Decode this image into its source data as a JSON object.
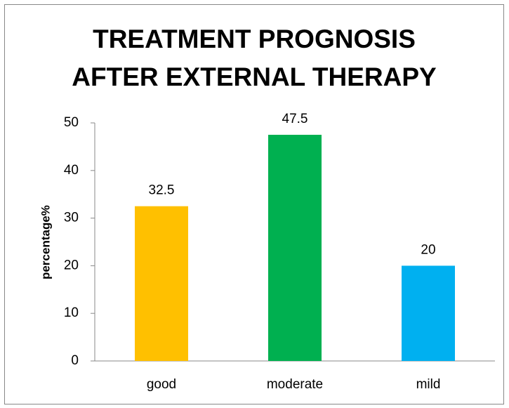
{
  "chart_data": {
    "type": "bar",
    "title": [
      "TREATMENT PROGNOSIS",
      "AFTER EXTERNAL THERAPY"
    ],
    "y_label": "percentage%",
    "categories": [
      "good",
      "moderate",
      "mild"
    ],
    "values": [
      32.5,
      47.5,
      20
    ],
    "colors": [
      "#ffc000",
      "#00b050",
      "#00b0f0"
    ],
    "ylim": [
      0,
      50
    ],
    "yticks": [
      0,
      10,
      20,
      30,
      40,
      50
    ],
    "grid": false,
    "data_labels": true
  }
}
